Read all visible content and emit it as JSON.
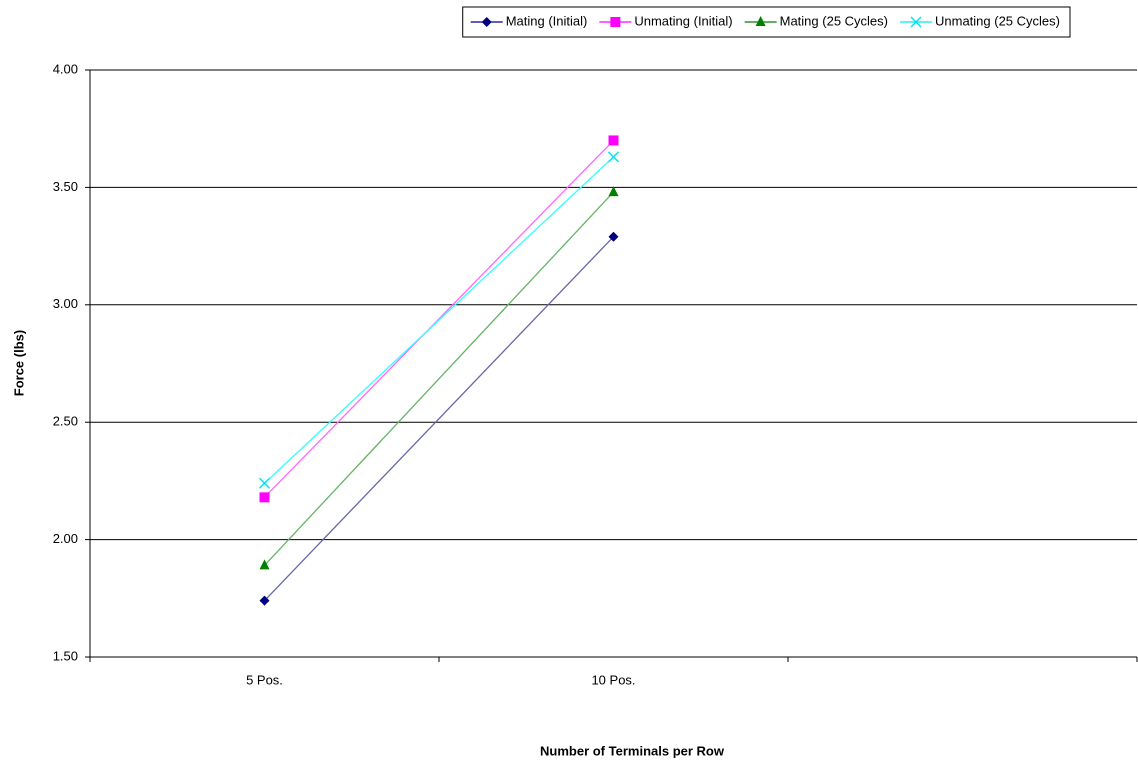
{
  "chart_data": {
    "type": "line",
    "x_label": "Number of Terminals per Row",
    "y_label": "Force (lbs)",
    "categories": [
      "5 Pos.",
      "10 Pos.",
      null
    ],
    "series": [
      {
        "name": "Mating (Initial)",
        "color": "#000080",
        "line_color": "#6666aa",
        "marker": "diamond",
        "values": [
          1.74,
          3.29,
          null
        ]
      },
      {
        "name": "Unmating (Initial)",
        "color": "#ff00ff",
        "line_color": "#ff66ff",
        "marker": "square",
        "values": [
          2.18,
          3.7,
          null
        ]
      },
      {
        "name": "Mating (25 Cycles)",
        "color": "#008000",
        "line_color": "#66b366",
        "marker": "triangle",
        "values": [
          1.89,
          3.48,
          null
        ]
      },
      {
        "name": "Unmating (25 Cycles)",
        "color": "#00e5ee",
        "line_color": "#33ffff",
        "marker": "x",
        "values": [
          2.24,
          3.63,
          null
        ]
      }
    ],
    "ylim": [
      1.5,
      4.0
    ],
    "yticks": [
      {
        "value": 1.5,
        "label": "1.50"
      },
      {
        "value": 2.0,
        "label": "2.00"
      },
      {
        "value": 2.5,
        "label": "2.50"
      },
      {
        "value": 3.0,
        "label": "3.00"
      },
      {
        "value": 3.5,
        "label": "3.50"
      },
      {
        "value": 4.0,
        "label": "4.00"
      }
    ],
    "grid": true,
    "legend": "top"
  }
}
